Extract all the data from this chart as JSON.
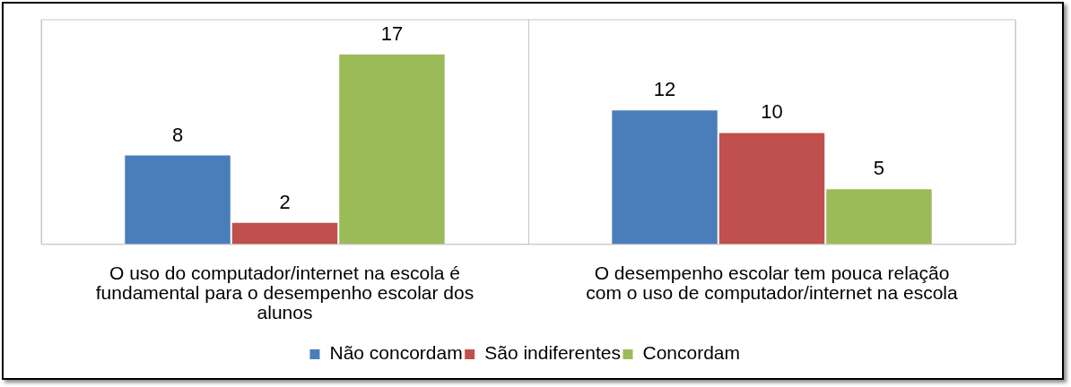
{
  "chart_data": {
    "type": "bar",
    "categories": [
      "O uso do computador/internet na escola é fundamental para o desempenho escolar dos alunos",
      "O desempenho escolar tem pouca relação com o uso de computador/internet na escola"
    ],
    "series": [
      {
        "name": "Não concordam",
        "color": "#4a7ebb",
        "values": [
          8,
          12
        ]
      },
      {
        "name": "São indiferentes",
        "color": "#c0504d",
        "values": [
          2,
          10
        ]
      },
      {
        "name": "Concordam",
        "color": "#9bbb59",
        "values": [
          17,
          5
        ]
      }
    ],
    "data_labels": true,
    "legend": "bottom"
  }
}
